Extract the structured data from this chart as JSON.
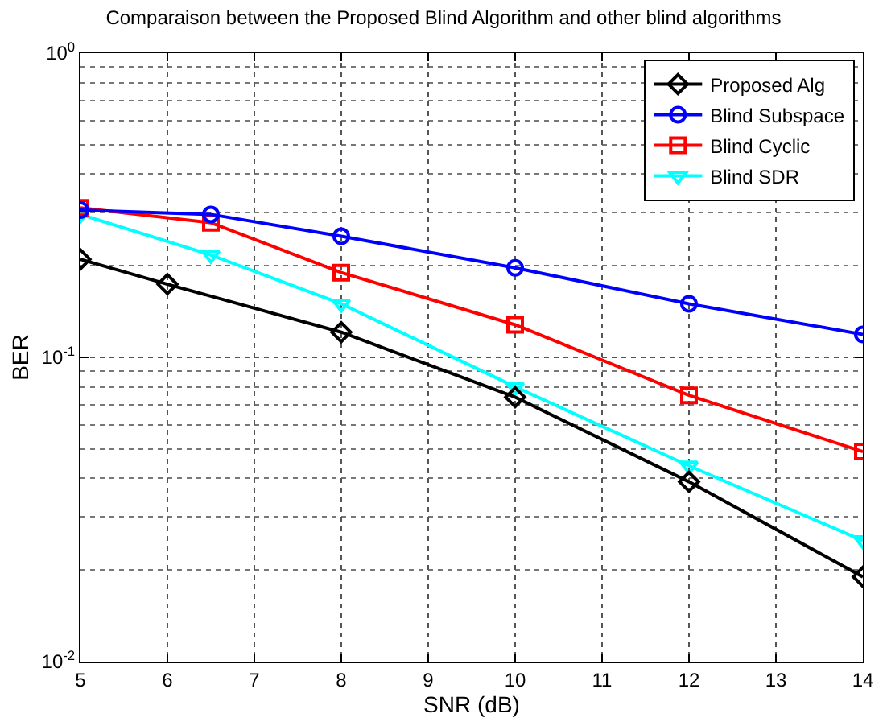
{
  "chart_data": {
    "type": "line",
    "title": "Comparaison between the Proposed Blind Algorithm and other blind algorithms",
    "xlabel": "SNR (dB)",
    "ylabel": "BER",
    "log": "y",
    "grid": true,
    "legend": "top right",
    "line_style": "solid",
    "xlim": [
      5,
      14
    ],
    "xticks": [
      5,
      6,
      7,
      8,
      9,
      10,
      11,
      12,
      13,
      14
    ],
    "ylim": [
      0.01,
      1
    ],
    "yticks": [
      {
        "value": 0.01,
        "label": "10$^{-2}$"
      },
      {
        "value": 0.1,
        "label": "10$^{-1}$"
      },
      {
        "value": 1,
        "label": "10$^{0}$"
      }
    ],
    "series": [
      {
        "name": "Proposed Alg",
        "color": "#000000",
        "marker": "diamond",
        "x": [
          5,
          6,
          8,
          10,
          12,
          14
        ],
        "values": [
          0.21,
          0.174,
          0.121,
          0.074,
          0.039,
          0.019
        ]
      },
      {
        "name": "Blind Subspace",
        "color": "#0000ff",
        "marker": "circle",
        "x": [
          5,
          6.5,
          8,
          10,
          12,
          14
        ],
        "values": [
          0.305,
          0.295,
          0.25,
          0.197,
          0.15,
          0.119
        ]
      },
      {
        "name": "Blind Cyclic",
        "color": "#ff0000",
        "marker": "square",
        "x": [
          5,
          6.5,
          8,
          10,
          12,
          14
        ],
        "values": [
          0.31,
          0.277,
          0.19,
          0.128,
          0.075,
          0.049
        ]
      },
      {
        "name": "Blind SDR",
        "color": "#00ffff",
        "marker": "triangle-down",
        "x": [
          5,
          6.5,
          8,
          10,
          12,
          14
        ],
        "values": [
          0.295,
          0.217,
          0.15,
          0.08,
          0.044,
          0.025
        ]
      }
    ]
  }
}
